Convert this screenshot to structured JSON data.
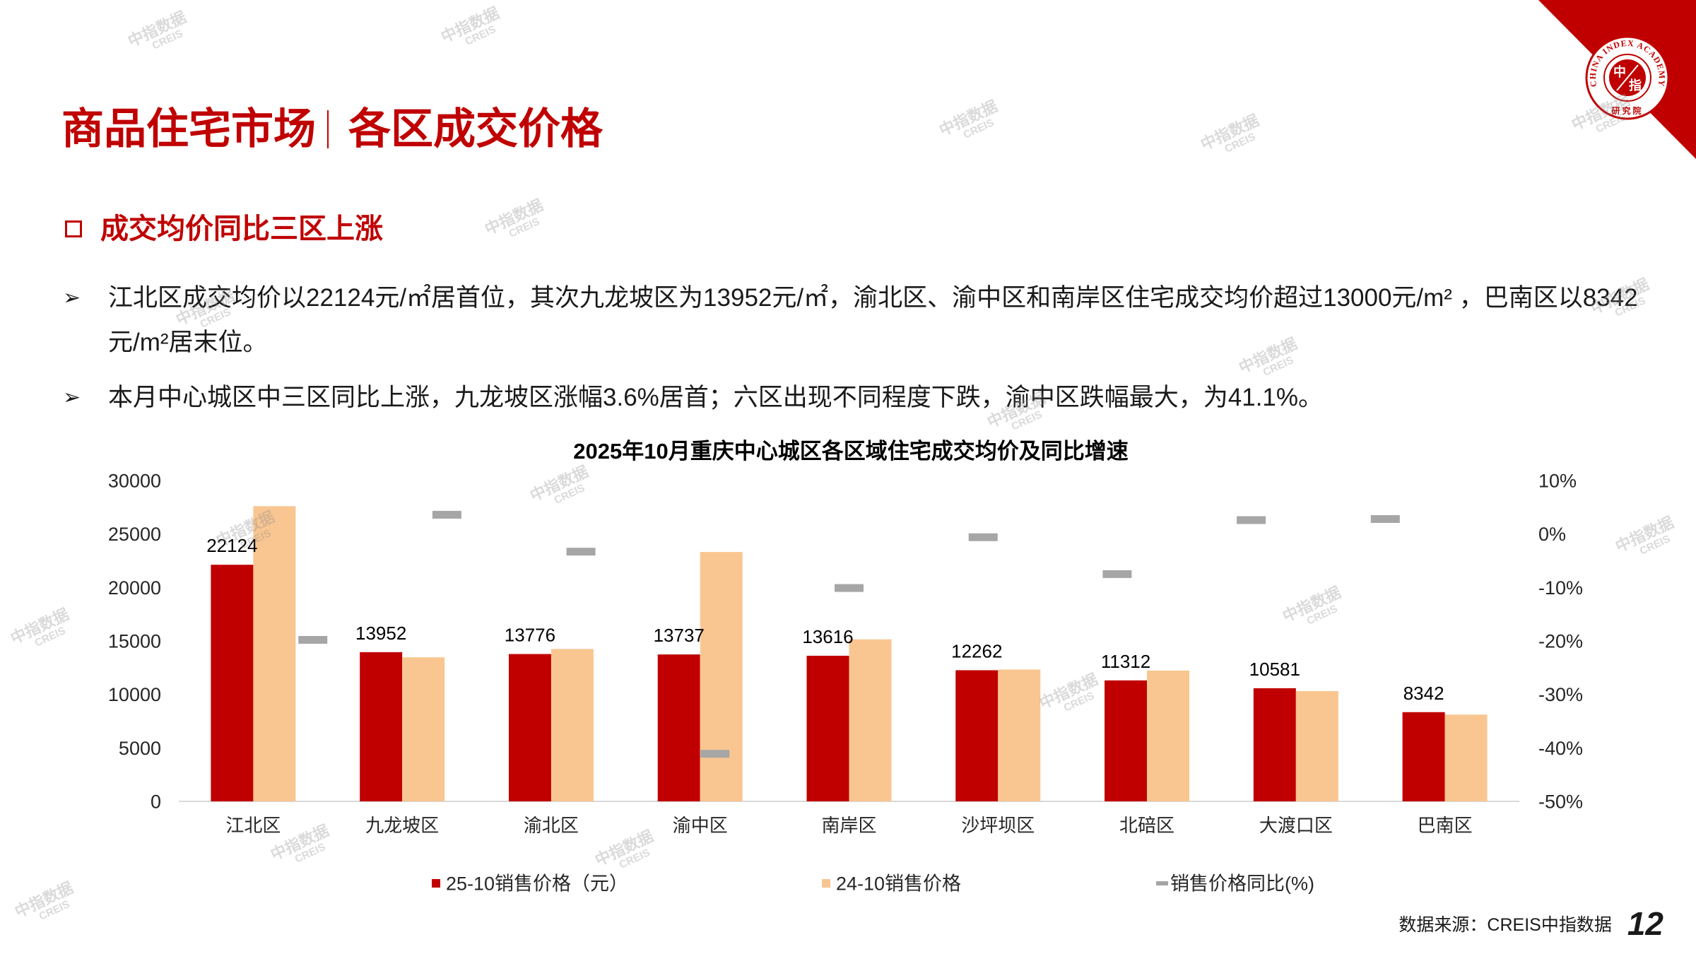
{
  "header": {
    "title_main": "商品住宅市场",
    "title_sub": "各区成交价格"
  },
  "logo": {
    "ring_text": "CHINA INDEX ACADEMY",
    "center_chars": [
      "中",
      "指"
    ],
    "bottom_text": "研究院",
    "color": "#C00000"
  },
  "section": {
    "heading_icon": "hollow-square-icon",
    "heading": "成交均价同比三区上涨"
  },
  "bullets": {
    "icon": "arrow-bullet-icon",
    "items": [
      "江北区成交均价以22124元/㎡居首位，其次九龙坡区为13952元/㎡，渝北区、渝中区和南岸区住宅成交均价超过13000元/m² ，巴南区以8342元/m²居末位。",
      "本月中心城区中三区同比上涨，九龙坡区涨幅3.6%居首；六区出现不同程度下跌，渝中区跌幅最大，为41.1%。"
    ]
  },
  "chart_data": {
    "type": "bar",
    "title": "2025年10月重庆中心城区各区域住宅成交均价及同比增速",
    "categories": [
      "江北区",
      "九龙坡区",
      "渝北区",
      "渝中区",
      "南岸区",
      "沙坪坝区",
      "北碚区",
      "大渡口区",
      "巴南区"
    ],
    "series": [
      {
        "name": "25-10销售价格（元）",
        "type": "bar",
        "axis": "left",
        "color": "#C00000",
        "data_labels": true,
        "values": [
          22124,
          13952,
          13776,
          13737,
          13616,
          12262,
          11312,
          10581,
          8342
        ]
      },
      {
        "name": "24-10销售价格",
        "type": "bar",
        "axis": "left",
        "color": "#F9C691",
        "data_labels": false,
        "values": [
          27600,
          13470,
          14250,
          23320,
          15150,
          12330,
          12230,
          10310,
          8115
        ]
      },
      {
        "name": "销售价格同比(%)",
        "type": "line",
        "show_line": false,
        "axis": "right",
        "color": "#A6A6A6",
        "data_labels": false,
        "values": [
          -19.8,
          3.6,
          -3.3,
          -41.1,
          -10.1,
          -0.6,
          -7.5,
          2.6,
          2.8
        ]
      }
    ],
    "ylim": [
      0,
      30000
    ],
    "y2lim": [
      -50,
      10
    ],
    "y_tick_labels": [
      "0",
      "5000",
      "10000",
      "15000",
      "20000",
      "25000",
      "30000"
    ],
    "y2_tick_labels": [
      "-50%",
      "-40%",
      "-30%",
      "-20%",
      "-10%",
      "0%",
      "10%"
    ],
    "grid": false,
    "legend": "bottom"
  },
  "footer": {
    "source": "数据来源：CREIS中指数据",
    "page_number": "12"
  },
  "watermark": {
    "line1": "中指数据",
    "line2": "CREIS"
  },
  "colors": {
    "accent": "#C00000",
    "text": "#1A1A1A",
    "axis": "#D9D9D9"
  }
}
